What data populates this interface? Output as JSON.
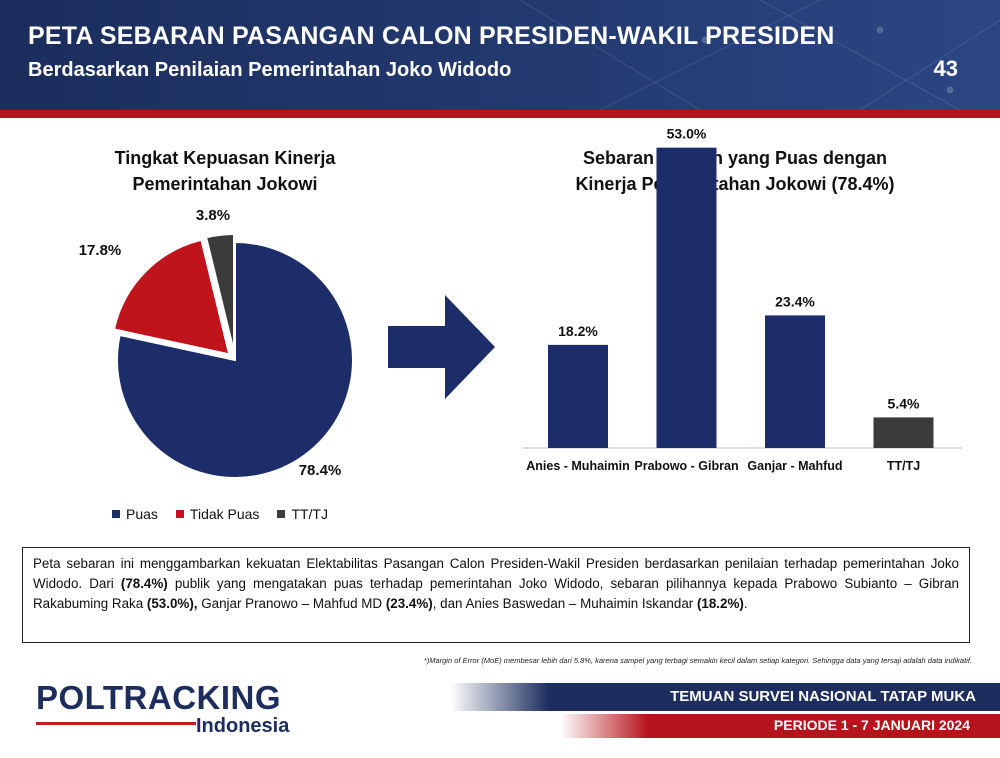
{
  "header": {
    "title": "PETA SEBARAN PASANGAN CALON PRESIDEN-WAKIL PRESIDEN",
    "subtitle": "Berdasarkan Penilaian Pemerintahan Joko Widodo",
    "page_number": "43"
  },
  "colors": {
    "navy": "#1c2d6a",
    "red": "#c0141c",
    "gray": "#3b3b3b",
    "accent_red": "#b6141c"
  },
  "chart_data": [
    {
      "type": "pie",
      "title_line1": "Tingkat Kepuasan Kinerja",
      "title_line2": "Pemerintahan Jokowi",
      "categories": [
        "Puas",
        "Tidak Puas",
        "TT/TJ"
      ],
      "values": [
        78.4,
        17.8,
        3.8
      ],
      "labels": [
        "78.4%",
        "17.8%",
        "3.8%"
      ],
      "colors": [
        "#1c2d6a",
        "#c0141c",
        "#3b3b3b"
      ],
      "exploded": [
        false,
        true,
        true
      ],
      "legend_position": "bottom"
    },
    {
      "type": "bar",
      "title_line1": "Sebaran Pemilih yang Puas dengan",
      "title_line2": "Kinerja Pemerintahan Jokowi (78.4%)",
      "categories": [
        "Anies - Muhaimin",
        "Prabowo - Gibran",
        "Ganjar - Mahfud",
        "TT/TJ"
      ],
      "values": [
        18.2,
        53.0,
        23.4,
        5.4
      ],
      "labels": [
        "18.2%",
        "53.0%",
        "23.4%",
        "5.4%"
      ],
      "colors": [
        "#1c2d6a",
        "#1c2d6a",
        "#1c2d6a",
        "#3b3b3b"
      ],
      "ylim": [
        0,
        60
      ],
      "grid": false
    }
  ],
  "description": {
    "parts": [
      {
        "text": "Peta sebaran ini menggambarkan kekuatan Elektabilitas Pasangan Calon Presiden-Wakil Presiden berdasarkan penilaian terhadap pemerintahan Joko Widodo. Dari ",
        "bold": false
      },
      {
        "text": "(78.4%)",
        "bold": true
      },
      {
        "text": " publik yang mengatakan puas terhadap pemerintahan Joko Widodo, sebaran pilihannya kepada Prabowo Subianto – Gibran Rakabuming Raka ",
        "bold": false
      },
      {
        "text": "(53.0%),",
        "bold": true
      },
      {
        "text": " Ganjar Pranowo – Mahfud MD ",
        "bold": false
      },
      {
        "text": "(23.4%)",
        "bold": true
      },
      {
        "text": ", dan Anies Baswedan – Muhaimin Iskandar ",
        "bold": false
      },
      {
        "text": "(18.2%)",
        "bold": true
      },
      {
        "text": ".",
        "bold": false
      }
    ]
  },
  "footnote": "*)Margin of Error (MoE) membesar lebih dari 5.8%,  karena sampel yang terbagi semakin kecil dalam setiap kategori. Sehingga data yang tersaji adalah data indikatif.",
  "logo": {
    "main": "POLTRACKING",
    "sub": "Indonesia"
  },
  "footer": {
    "line1": "TEMUAN SURVEI NASIONAL TATAP MUKA",
    "line2": "PERIODE 1 - 7 JANUARI 2024"
  }
}
